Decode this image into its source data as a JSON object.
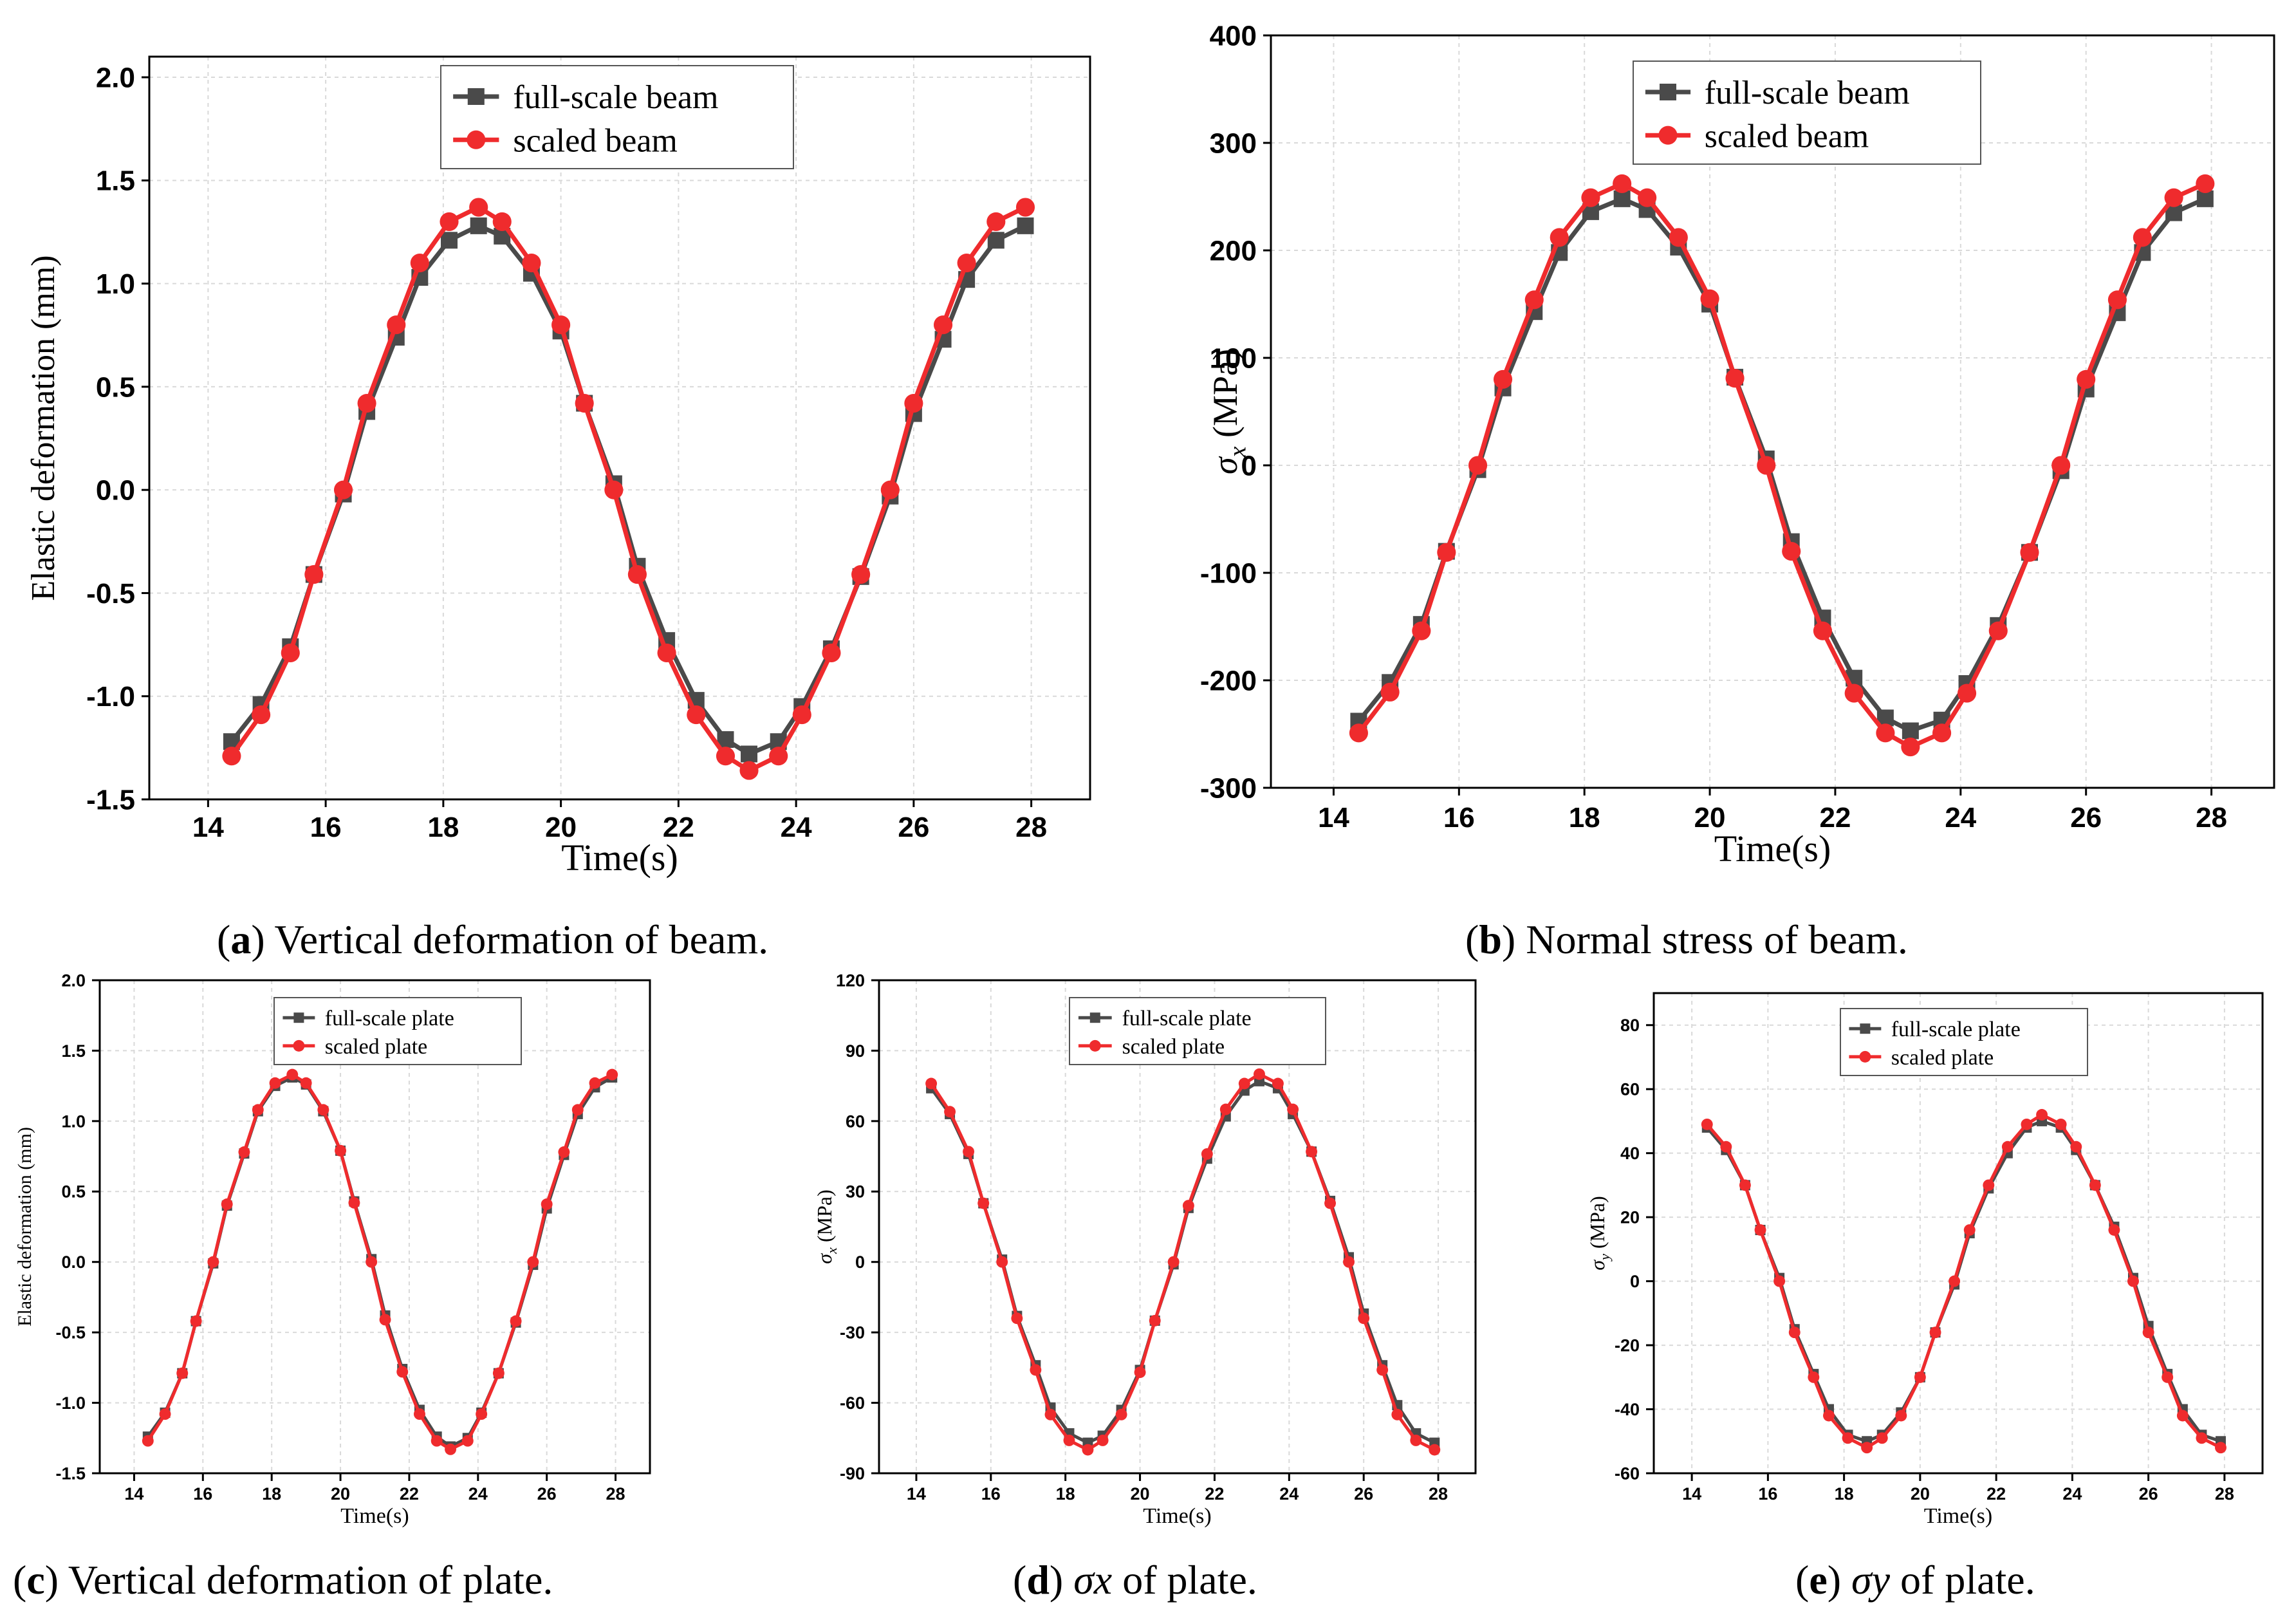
{
  "colors": {
    "full": "#4a4a4a",
    "scaled": "#ef2b2d",
    "grid": "#d9d9d9",
    "axis": "#000000"
  },
  "chart_data": [
    {
      "id": "a",
      "type": "line",
      "xlabel": "Time(s)",
      "ylabel": "Elastic deformation (mm)",
      "ylabel_pre": "",
      "ylabel_sub": "",
      "xlim": [
        13,
        29
      ],
      "ylim": [
        -1.5,
        2.1
      ],
      "xticks": [
        14,
        16,
        18,
        20,
        22,
        24,
        26,
        28
      ],
      "yticks": [
        -1.5,
        -1.0,
        -0.5,
        0.0,
        0.5,
        1.0,
        1.5,
        2.0
      ],
      "ydec": 1,
      "caption": {
        "open": "(",
        "label": "a",
        "text": ") Vertical deformation of beam."
      },
      "series": [
        {
          "name": "full-scale beam",
          "marker": "square",
          "x": [
            14.4,
            14.9,
            15.4,
            15.8,
            16.3,
            16.7,
            17.2,
            17.6,
            18.1,
            18.6,
            19.0,
            19.5,
            20.0,
            20.4,
            20.9,
            21.3,
            21.8,
            22.3,
            22.8,
            23.2,
            23.7,
            24.1,
            24.6,
            25.1,
            25.6,
            26.0,
            26.5,
            26.9,
            27.4,
            27.9
          ],
          "y": [
            -1.22,
            -1.04,
            -0.76,
            -0.41,
            -0.02,
            0.38,
            0.74,
            1.03,
            1.21,
            1.28,
            1.23,
            1.05,
            0.77,
            0.42,
            0.03,
            -0.37,
            -0.73,
            -1.02,
            -1.21,
            -1.28,
            -1.22,
            -1.05,
            -0.77,
            -0.42,
            -0.03,
            0.37,
            0.73,
            1.02,
            1.21,
            1.28
          ]
        },
        {
          "name": "scaled beam",
          "marker": "circle",
          "x": [
            14.4,
            14.9,
            15.4,
            15.8,
            16.3,
            16.7,
            17.2,
            17.6,
            18.1,
            18.6,
            19.0,
            19.5,
            20.0,
            20.4,
            20.9,
            21.3,
            21.8,
            22.3,
            22.8,
            23.2,
            23.7,
            24.1,
            24.6,
            25.1,
            25.6,
            26.0,
            26.5,
            26.9,
            27.4,
            27.9
          ],
          "y": [
            -1.29,
            -1.09,
            -0.79,
            -0.41,
            0.0,
            0.42,
            0.8,
            1.1,
            1.3,
            1.37,
            1.3,
            1.1,
            0.8,
            0.42,
            0.0,
            -0.41,
            -0.79,
            -1.09,
            -1.29,
            -1.36,
            -1.29,
            -1.09,
            -0.79,
            -0.41,
            0.0,
            0.42,
            0.8,
            1.1,
            1.3,
            1.37
          ]
        }
      ]
    },
    {
      "id": "b",
      "type": "line",
      "xlabel": "Time(s)",
      "ylabel": " (MPa)",
      "ylabel_pre": "σ",
      "ylabel_sub": "x",
      "xlim": [
        13,
        29
      ],
      "ylim": [
        -300,
        400
      ],
      "xticks": [
        14,
        16,
        18,
        20,
        22,
        24,
        26,
        28
      ],
      "yticks": [
        -300,
        -200,
        -100,
        0,
        100,
        200,
        300,
        400
      ],
      "ydec": 0,
      "caption": {
        "open": "(",
        "label": "b",
        "text": ") Normal stress of beam."
      },
      "series": [
        {
          "name": "full-scale beam",
          "marker": "square",
          "x": [
            14.4,
            14.9,
            15.4,
            15.8,
            16.3,
            16.7,
            17.2,
            17.6,
            18.1,
            18.6,
            19.0,
            19.5,
            20.0,
            20.4,
            20.9,
            21.3,
            21.8,
            22.3,
            22.8,
            23.2,
            23.7,
            24.1,
            24.6,
            25.1,
            25.6,
            26.0,
            26.5,
            26.9,
            27.4,
            27.9
          ],
          "y": [
            -238,
            -202,
            -148,
            -80,
            -4,
            72,
            143,
            198,
            236,
            248,
            238,
            203,
            150,
            82,
            6,
            -71,
            -142,
            -198,
            -235,
            -247,
            -237,
            -203,
            -149,
            -81,
            -5,
            71,
            142,
            198,
            235,
            248
          ]
        },
        {
          "name": "scaled beam",
          "marker": "circle",
          "x": [
            14.4,
            14.9,
            15.4,
            15.8,
            16.3,
            16.7,
            17.2,
            17.6,
            18.1,
            18.6,
            19.0,
            19.5,
            20.0,
            20.4,
            20.9,
            21.3,
            21.8,
            22.3,
            22.8,
            23.2,
            23.7,
            24.1,
            24.6,
            25.1,
            25.6,
            26.0,
            26.5,
            26.9,
            27.4,
            27.9
          ],
          "y": [
            -249,
            -211,
            -154,
            -81,
            0,
            80,
            154,
            212,
            249,
            262,
            249,
            212,
            155,
            81,
            0,
            -80,
            -154,
            -212,
            -249,
            -262,
            -249,
            -212,
            -154,
            -81,
            0,
            80,
            154,
            212,
            249,
            262
          ]
        }
      ]
    },
    {
      "id": "c",
      "type": "line",
      "xlabel": "Time(s)",
      "ylabel": "Elastic deformation (mm)",
      "ylabel_pre": "",
      "ylabel_sub": "",
      "xlim": [
        13,
        29
      ],
      "ylim": [
        -1.5,
        2.0
      ],
      "xticks": [
        14,
        16,
        18,
        20,
        22,
        24,
        26,
        28
      ],
      "yticks": [
        -1.5,
        -1.0,
        -0.5,
        0.0,
        0.5,
        1.0,
        1.5,
        2.0
      ],
      "ydec": 1,
      "caption": {
        "open": "(",
        "label": "c",
        "text": ") Vertical deformation of plate."
      },
      "series": [
        {
          "name": "full-scale plate",
          "marker": "square",
          "x": [
            14.4,
            14.9,
            15.4,
            15.8,
            16.3,
            16.7,
            17.2,
            17.6,
            18.1,
            18.6,
            19.0,
            19.5,
            20.0,
            20.4,
            20.9,
            21.3,
            21.8,
            22.3,
            22.8,
            23.2,
            23.7,
            24.1,
            24.6,
            25.1,
            25.6,
            26.0,
            26.5,
            26.9,
            27.4,
            27.9
          ],
          "y": [
            -1.24,
            -1.07,
            -0.79,
            -0.42,
            -0.01,
            0.4,
            0.77,
            1.07,
            1.25,
            1.31,
            1.26,
            1.07,
            0.79,
            0.43,
            0.02,
            -0.38,
            -0.76,
            -1.05,
            -1.24,
            -1.31,
            -1.25,
            -1.07,
            -0.79,
            -0.43,
            -0.02,
            0.38,
            0.76,
            1.05,
            1.24,
            1.31
          ]
        },
        {
          "name": "scaled plate",
          "marker": "circle",
          "x": [
            14.4,
            14.9,
            15.4,
            15.8,
            16.3,
            16.7,
            17.2,
            17.6,
            18.1,
            18.6,
            19.0,
            19.5,
            20.0,
            20.4,
            20.9,
            21.3,
            21.8,
            22.3,
            22.8,
            23.2,
            23.7,
            24.1,
            24.6,
            25.1,
            25.6,
            26.0,
            26.5,
            26.9,
            27.4,
            27.9
          ],
          "y": [
            -1.27,
            -1.08,
            -0.79,
            -0.42,
            0.0,
            0.41,
            0.78,
            1.08,
            1.27,
            1.33,
            1.27,
            1.08,
            0.79,
            0.42,
            0.0,
            -0.41,
            -0.78,
            -1.08,
            -1.27,
            -1.33,
            -1.27,
            -1.08,
            -0.79,
            -0.42,
            0.0,
            0.41,
            0.78,
            1.08,
            1.27,
            1.33
          ]
        }
      ]
    },
    {
      "id": "d",
      "type": "line",
      "xlabel": "Time(s)",
      "ylabel": " (MPa)",
      "ylabel_pre": "σ",
      "ylabel_sub": "x",
      "xlim": [
        13,
        29
      ],
      "ylim": [
        -90,
        120
      ],
      "xticks": [
        14,
        16,
        18,
        20,
        22,
        24,
        26,
        28
      ],
      "yticks": [
        -90,
        -60,
        -30,
        0,
        30,
        60,
        90,
        120
      ],
      "ydec": 0,
      "caption": {
        "open": "(",
        "label": "d",
        "text": ") ",
        "italic": "σx",
        "text2": " of plate."
      },
      "series": [
        {
          "name": "full-scale plate",
          "marker": "square",
          "x": [
            14.4,
            14.9,
            15.4,
            15.8,
            16.3,
            16.7,
            17.2,
            17.6,
            18.1,
            18.6,
            19.0,
            19.5,
            20.0,
            20.4,
            20.9,
            21.3,
            21.8,
            22.3,
            22.8,
            23.2,
            23.7,
            24.1,
            24.6,
            25.1,
            25.6,
            26.0,
            26.5,
            26.9,
            27.4,
            27.9
          ],
          "y": [
            74,
            63,
            46,
            25,
            1,
            -23,
            -44,
            -62,
            -73,
            -77,
            -74,
            -63,
            -46,
            -25,
            -1,
            23,
            44,
            62,
            73,
            77,
            74,
            63,
            47,
            26,
            2,
            -22,
            -44,
            -61,
            -73,
            -77
          ]
        },
        {
          "name": "scaled plate",
          "marker": "circle",
          "x": [
            14.4,
            14.9,
            15.4,
            15.8,
            16.3,
            16.7,
            17.2,
            17.6,
            18.1,
            18.6,
            19.0,
            19.5,
            20.0,
            20.4,
            20.9,
            21.3,
            21.8,
            22.3,
            22.8,
            23.2,
            23.7,
            24.1,
            24.6,
            25.1,
            25.6,
            26.0,
            26.5,
            26.9,
            27.4,
            27.9
          ],
          "y": [
            76,
            64,
            47,
            25,
            0,
            -24,
            -46,
            -65,
            -76,
            -80,
            -76,
            -65,
            -47,
            -25,
            0,
            24,
            46,
            65,
            76,
            80,
            76,
            65,
            47,
            25,
            0,
            -24,
            -46,
            -65,
            -76,
            -80
          ]
        }
      ]
    },
    {
      "id": "e",
      "type": "line",
      "xlabel": "Time(s)",
      "ylabel": " (MPa)",
      "ylabel_pre": "σ",
      "ylabel_sub": "y",
      "xlim": [
        13,
        29
      ],
      "ylim": [
        -60,
        90
      ],
      "xticks": [
        14,
        16,
        18,
        20,
        22,
        24,
        26,
        28
      ],
      "yticks": [
        -60,
        -40,
        -20,
        0,
        20,
        40,
        60,
        80
      ],
      "ydec": 0,
      "caption": {
        "open": "(",
        "label": "e",
        "text": ") ",
        "italic": "σy",
        "text2": " of plate."
      },
      "series": [
        {
          "name": "full-scale plate",
          "marker": "square",
          "x": [
            14.4,
            14.9,
            15.4,
            15.8,
            16.3,
            16.7,
            17.2,
            17.6,
            18.1,
            18.6,
            19.0,
            19.5,
            20.0,
            20.4,
            20.9,
            21.3,
            21.8,
            22.3,
            22.8,
            23.2,
            23.7,
            24.1,
            24.6,
            25.1,
            25.6,
            26.0,
            26.5,
            26.9,
            27.4,
            27.9
          ],
          "y": [
            48,
            41,
            30,
            16,
            1,
            -15,
            -29,
            -40,
            -48,
            -50,
            -48,
            -41,
            -30,
            -16,
            -1,
            15,
            29,
            40,
            48,
            50,
            48,
            41,
            30,
            17,
            1,
            -14,
            -29,
            -40,
            -48,
            -50
          ]
        },
        {
          "name": "scaled plate",
          "marker": "circle",
          "x": [
            14.4,
            14.9,
            15.4,
            15.8,
            16.3,
            16.7,
            17.2,
            17.6,
            18.1,
            18.6,
            19.0,
            19.5,
            20.0,
            20.4,
            20.9,
            21.3,
            21.8,
            22.3,
            22.8,
            23.2,
            23.7,
            24.1,
            24.6,
            25.1,
            25.6,
            26.0,
            26.5,
            26.9,
            27.4,
            27.9
          ],
          "y": [
            49,
            42,
            30,
            16,
            0,
            -16,
            -30,
            -42,
            -49,
            -52,
            -49,
            -42,
            -30,
            -16,
            0,
            16,
            30,
            42,
            49,
            52,
            49,
            42,
            30,
            16,
            0,
            -16,
            -30,
            -42,
            -49,
            -52
          ]
        }
      ]
    }
  ]
}
